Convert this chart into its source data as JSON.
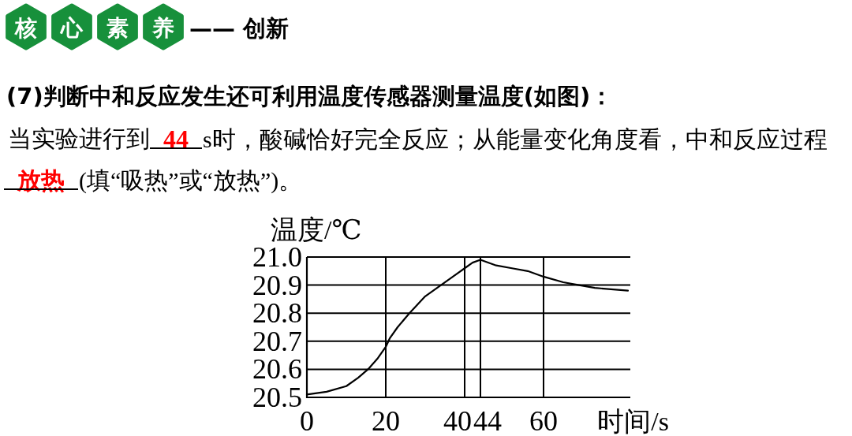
{
  "chart_data": {
    "type": "line",
    "title": "核心素养",
    "subtitle": "—— 创新",
    "annotations": [
      "(7)判断中和反应发生还可利用温度传感器测量温度(如图)：",
      "当实验进行到",
      "44",
      "s时，酸碱恰好完全反应；从能量变化角度看，中和反应过程",
      "放热",
      "(填“吸热”或“放热”)。"
    ],
    "xlabel": "时间/s",
    "ylabel": "温度/℃",
    "x": [
      0,
      5,
      10,
      13,
      15.5,
      18,
      20,
      21,
      23,
      26,
      30,
      34,
      38,
      40,
      42,
      44,
      48,
      52,
      56,
      60,
      65,
      69,
      73,
      81.4
    ],
    "values": [
      20.51,
      20.52,
      20.54,
      20.57,
      20.6,
      20.64,
      20.68,
      20.71,
      20.75,
      20.8,
      20.86,
      20.9,
      20.94,
      20.96,
      20.98,
      20.99,
      20.97,
      20.96,
      20.95,
      20.93,
      20.91,
      20.9,
      20.89,
      20.88
    ],
    "color": "#000000",
    "xlim": [
      0,
      82
    ],
    "ylim": [
      20.5,
      21.0
    ],
    "xticks": [
      0,
      20,
      40,
      44,
      60
    ],
    "yticks": [
      20.5,
      20.6,
      20.7,
      20.8,
      20.9,
      {
        "value": 21,
        "label": "21.0"
      }
    ],
    "grid": true
  }
}
